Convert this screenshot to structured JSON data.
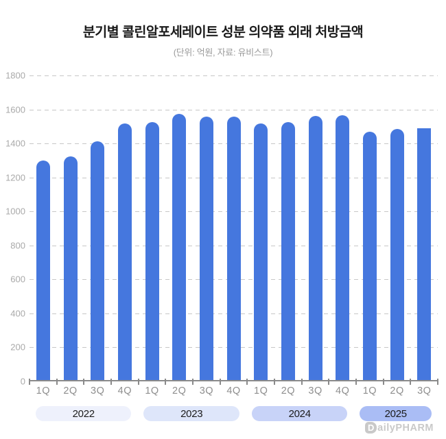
{
  "header": {
    "title": "분기별 콜린알포세레이트 성분 의약품 외래 처방금액",
    "subtitle": "(단위: 억원, 자료: 유비스트)"
  },
  "chart_data": {
    "type": "bar",
    "title": "분기별 콜린알포세레이트 성분 의약품 외래 처방금액",
    "unit_note": "단위: 억원",
    "source_note": "자료: 유비스트",
    "categories": [
      "1Q",
      "2Q",
      "3Q",
      "4Q",
      "1Q",
      "2Q",
      "3Q",
      "4Q",
      "1Q",
      "2Q",
      "3Q",
      "4Q",
      "1Q",
      "2Q",
      "3Q"
    ],
    "values": [
      1290,
      1315,
      1406,
      1509,
      1516,
      1564,
      1548,
      1550,
      1510,
      1516,
      1552,
      1556,
      1461,
      1477,
      1482
    ],
    "groups": [
      {
        "label": "2022",
        "quarters": 4,
        "pill_color": "#eef1fc"
      },
      {
        "label": "2023",
        "quarters": 4,
        "pill_color": "#dee6fa"
      },
      {
        "label": "2024",
        "quarters": 4,
        "pill_color": "#c8d3f8"
      },
      {
        "label": "2025",
        "quarters": 3,
        "pill_color": "#aabdf5"
      }
    ],
    "xlabel": "",
    "ylabel": "",
    "ylim": [
      0,
      1800
    ],
    "yticks": [
      0,
      200,
      400,
      600,
      800,
      1000,
      1200,
      1400,
      1600,
      1800
    ],
    "grid": "horizontal-dashed",
    "legend": "none",
    "bar_color": "#4577DE",
    "last_bar_flat_top": true
  },
  "footer": {
    "logo_mark": "D",
    "logo_text": "ailyPHARM"
  }
}
